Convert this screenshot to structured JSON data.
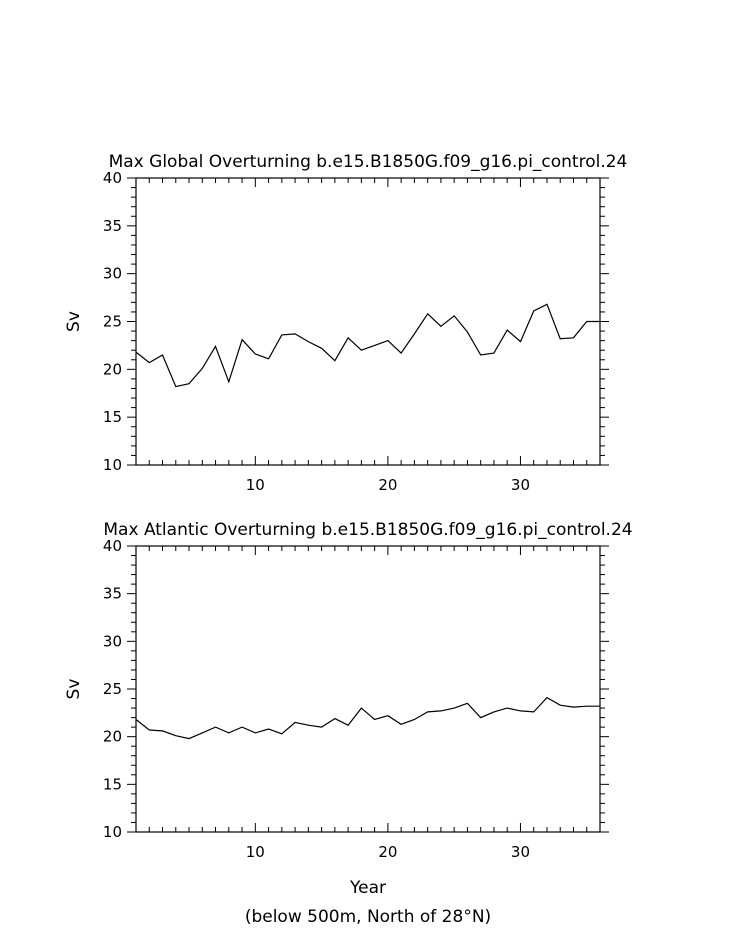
{
  "chart_data": [
    {
      "type": "line",
      "title": "Max Global Overturning b.e15.B1850G.f09_g16.pi_control.24",
      "xlabel": "",
      "ylabel": "Sv",
      "xlim": [
        1,
        36
      ],
      "ylim": [
        10,
        40
      ],
      "xticks": [
        "10",
        "20",
        "30"
      ],
      "yticks": [
        "10",
        "15",
        "20",
        "25",
        "30",
        "35",
        "40"
      ],
      "grid": false,
      "series": [
        {
          "x": [
            1,
            2,
            3,
            4,
            5,
            6,
            7,
            8,
            9,
            10,
            11,
            12,
            13,
            14,
            15,
            16,
            17,
            18,
            19,
            20,
            21,
            22,
            23,
            24,
            25,
            26,
            27,
            28,
            29,
            30,
            31,
            32,
            33,
            34,
            35,
            36
          ],
          "values": [
            21.8,
            20.7,
            21.5,
            18.2,
            18.5,
            20.1,
            22.4,
            18.7,
            23.1,
            21.6,
            21.1,
            23.6,
            23.7,
            22.9,
            22.2,
            20.9,
            23.3,
            22.0,
            22.5,
            23.0,
            21.7,
            23.7,
            25.8,
            24.5,
            25.6,
            23.9,
            21.5,
            21.7,
            24.1,
            22.9,
            26.1,
            26.8,
            23.2,
            23.3,
            25.0,
            25.0
          ]
        }
      ]
    },
    {
      "type": "line",
      "title": "Max Atlantic Overturning b.e15.B1850G.f09_g16.pi_control.24",
      "xlabel": "Year",
      "ylabel": "Sv",
      "xlim": [
        1,
        36
      ],
      "ylim": [
        10,
        40
      ],
      "xticks": [
        "10",
        "20",
        "30"
      ],
      "yticks": [
        "10",
        "15",
        "20",
        "25",
        "30",
        "35",
        "40"
      ],
      "grid": false,
      "series": [
        {
          "x": [
            1,
            2,
            3,
            4,
            5,
            6,
            7,
            8,
            9,
            10,
            11,
            12,
            13,
            14,
            15,
            16,
            17,
            18,
            19,
            20,
            21,
            22,
            23,
            24,
            25,
            26,
            27,
            28,
            29,
            30,
            31,
            32,
            33,
            34,
            35,
            36
          ],
          "values": [
            21.8,
            20.7,
            20.6,
            20.1,
            19.8,
            20.4,
            21.0,
            20.4,
            21.0,
            20.4,
            20.8,
            20.3,
            21.5,
            21.2,
            21.0,
            21.9,
            21.2,
            23.0,
            21.8,
            22.2,
            21.3,
            21.8,
            22.6,
            22.7,
            23.0,
            23.5,
            22.0,
            22.6,
            23.0,
            22.7,
            22.6,
            24.1,
            23.3,
            23.1,
            23.2,
            23.2
          ]
        }
      ]
    }
  ],
  "footnote": "(below 500m, North of 28°N)"
}
